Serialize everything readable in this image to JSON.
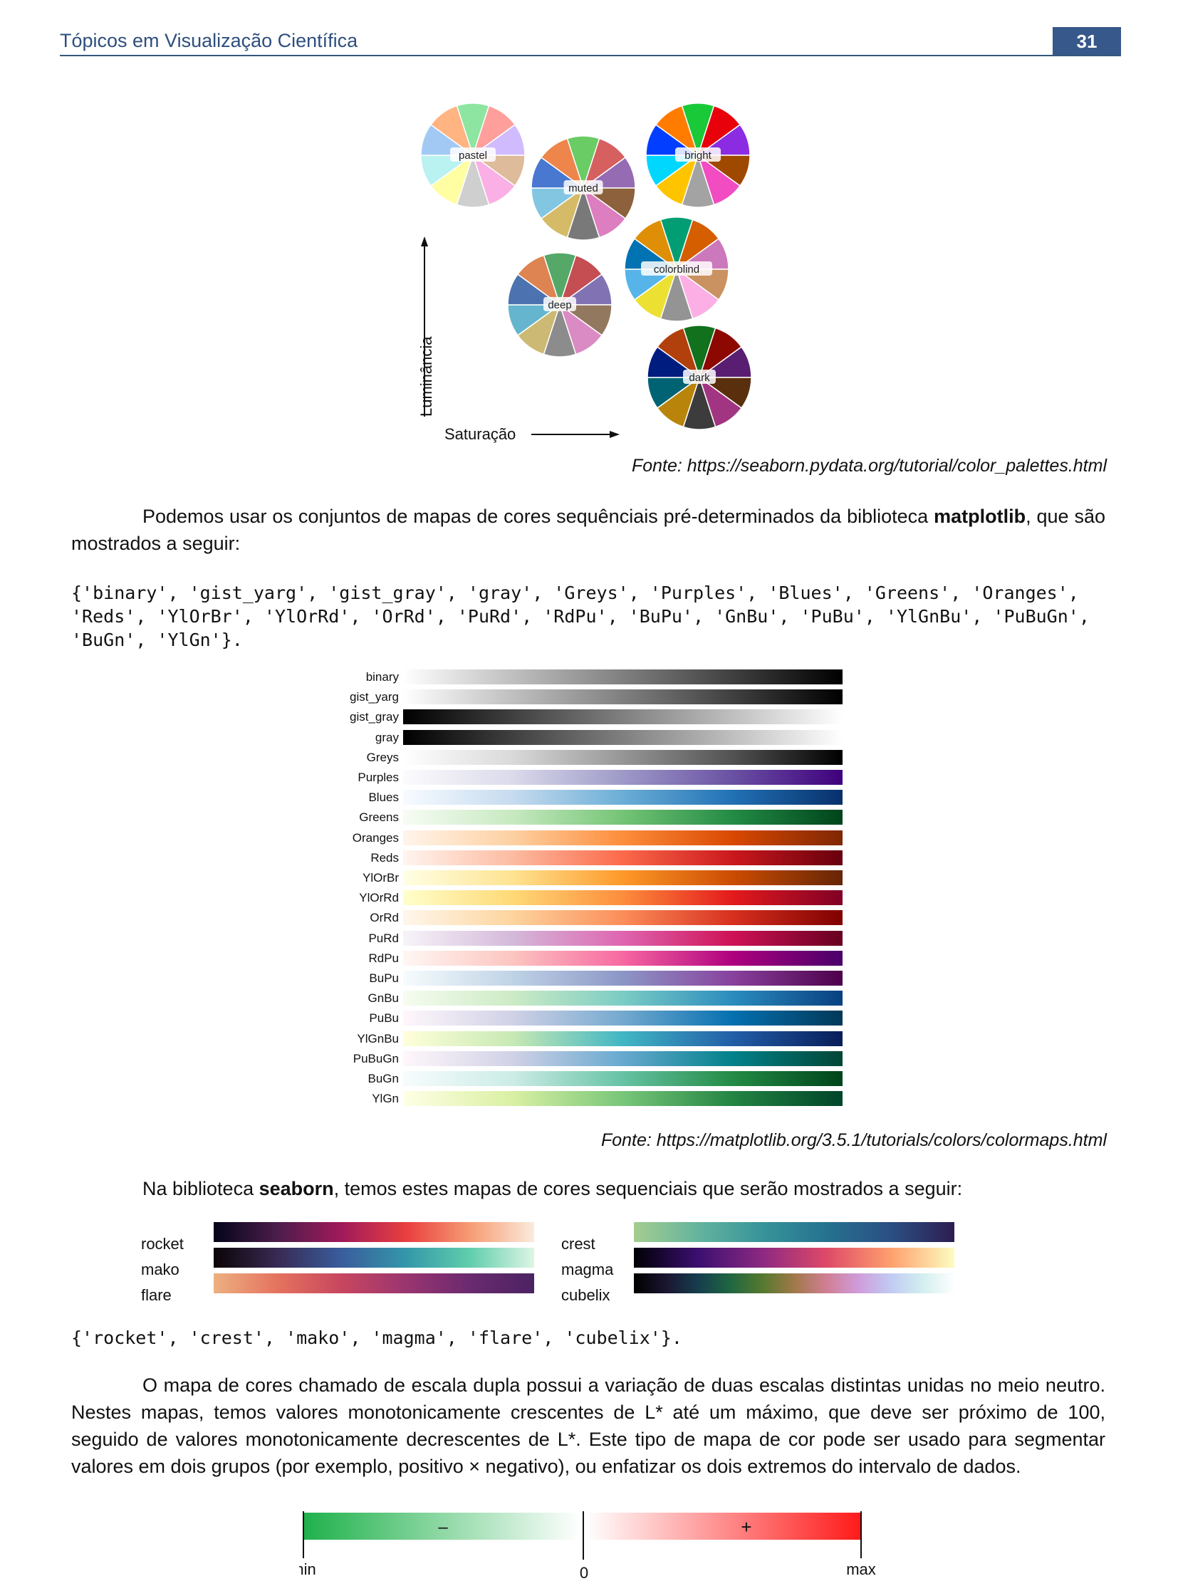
{
  "header": {
    "title": "Tópicos em Visualização Científica",
    "page_number": "31"
  },
  "palettes_figure": {
    "palettes": [
      {
        "name": "pastel",
        "colors": [
          "#8de5a1",
          "#ff9f9b",
          "#d0bbff",
          "#debb9b",
          "#fab0e4",
          "#cfcfcf",
          "#fffea3",
          "#b9f2f0",
          "#a1c9f4",
          "#ffb482"
        ]
      },
      {
        "name": "muted",
        "colors": [
          "#6acc64",
          "#d65f5f",
          "#956cb4",
          "#8c613c",
          "#dc7ec0",
          "#797979",
          "#d5bb67",
          "#82c6e2",
          "#4878d0",
          "#ee854a"
        ]
      },
      {
        "name": "bright",
        "colors": [
          "#1ac938",
          "#e8000b",
          "#8b2be2",
          "#9f4800",
          "#f14cc1",
          "#a3a3a3",
          "#ffc400",
          "#00d7ff",
          "#023eff",
          "#ff7c00"
        ]
      },
      {
        "name": "deep",
        "colors": [
          "#55a868",
          "#c44e52",
          "#8172b3",
          "#937860",
          "#da8bc3",
          "#8c8c8c",
          "#ccb974",
          "#64b5cd",
          "#4c72b0",
          "#dd8452"
        ]
      },
      {
        "name": "colorblind",
        "colors": [
          "#029e73",
          "#d55e00",
          "#cc78bc",
          "#ca9161",
          "#fbafe4",
          "#949494",
          "#ece133",
          "#56b4e9",
          "#0173b2",
          "#de8f05"
        ]
      },
      {
        "name": "dark",
        "colors": [
          "#12711c",
          "#8c0800",
          "#591e71",
          "#592f0d",
          "#a23582",
          "#3c3c3c",
          "#b8850a",
          "#006374",
          "#001c7f",
          "#b1400d"
        ]
      }
    ],
    "y_axis_label": "Luminância",
    "x_axis_label": "Saturação",
    "caption": "Fonte: https://seaborn.pydata.org/tutorial/color_palettes.html"
  },
  "paragraph1": {
    "before_bold": "Podemos usar os conjuntos de mapas de cores sequênciais pré-determinados da biblioteca ",
    "bold": "matplotlib",
    "after_bold": ", que são mostrados a seguir:"
  },
  "code1": "{'binary', 'gist_yarg', 'gist_gray', 'gray', 'Greys', 'Purples', 'Blues', 'Greens', 'Oranges', 'Reds', 'YlOrBr', 'YlOrRd', 'OrRd', 'PuRd', 'RdPu', 'BuPu', 'GnBu', 'PuBu', 'YlGnBu', 'PuBuGn', 'BuGn', 'YlGn'}.",
  "matplotlib_cmaps": [
    {
      "name": "binary",
      "colors": [
        "#ffffff",
        "#000000"
      ]
    },
    {
      "name": "gist_yarg",
      "colors": [
        "#ffffff",
        "#000000"
      ]
    },
    {
      "name": "gist_gray",
      "colors": [
        "#000000",
        "#ffffff"
      ]
    },
    {
      "name": "gray",
      "colors": [
        "#000000",
        "#ffffff"
      ]
    },
    {
      "name": "Greys",
      "colors": [
        "#ffffff",
        "#d9d9d9",
        "#969696",
        "#525252",
        "#000000"
      ]
    },
    {
      "name": "Purples",
      "colors": [
        "#fcfbfd",
        "#dadaeb",
        "#9e9ac8",
        "#6a51a3",
        "#3f007d"
      ]
    },
    {
      "name": "Blues",
      "colors": [
        "#f7fbff",
        "#c6dbef",
        "#6baed6",
        "#2171b5",
        "#08306b"
      ]
    },
    {
      "name": "Greens",
      "colors": [
        "#f7fcf5",
        "#c7e9c0",
        "#74c476",
        "#238b45",
        "#00441b"
      ]
    },
    {
      "name": "Oranges",
      "colors": [
        "#fff5eb",
        "#fdd0a2",
        "#fd8d3c",
        "#d94801",
        "#7f2704"
      ]
    },
    {
      "name": "Reds",
      "colors": [
        "#fff5f0",
        "#fcbba1",
        "#fb6a4a",
        "#cb181d",
        "#67000d"
      ]
    },
    {
      "name": "YlOrBr",
      "colors": [
        "#ffffe5",
        "#fee391",
        "#fe9929",
        "#cc4c02",
        "#662506"
      ]
    },
    {
      "name": "YlOrRd",
      "colors": [
        "#ffffcc",
        "#fed976",
        "#fd8d3c",
        "#e31a1c",
        "#800026"
      ]
    },
    {
      "name": "OrRd",
      "colors": [
        "#fff7ec",
        "#fdd49e",
        "#fc8d59",
        "#d7301f",
        "#7f0000"
      ]
    },
    {
      "name": "PuRd",
      "colors": [
        "#f7f4f9",
        "#d4b9da",
        "#df65b0",
        "#ce1256",
        "#67001f"
      ]
    },
    {
      "name": "RdPu",
      "colors": [
        "#fff7f3",
        "#fcc5c0",
        "#f768a1",
        "#ae017e",
        "#49006a"
      ]
    },
    {
      "name": "BuPu",
      "colors": [
        "#f7fcfd",
        "#bfd3e6",
        "#8c96c6",
        "#88419d",
        "#4d004b"
      ]
    },
    {
      "name": "GnBu",
      "colors": [
        "#f7fcf0",
        "#ccebc5",
        "#7bccc4",
        "#2b8cbe",
        "#084081"
      ]
    },
    {
      "name": "PuBu",
      "colors": [
        "#fff7fb",
        "#d0d1e6",
        "#74a9cf",
        "#0570b0",
        "#023858"
      ]
    },
    {
      "name": "YlGnBu",
      "colors": [
        "#ffffd9",
        "#c7e9b4",
        "#41b6c4",
        "#225ea8",
        "#081d58"
      ]
    },
    {
      "name": "PuBuGn",
      "colors": [
        "#fff7fb",
        "#d0d1e6",
        "#67a9cf",
        "#02818a",
        "#014636"
      ]
    },
    {
      "name": "BuGn",
      "colors": [
        "#f7fcfd",
        "#ccece6",
        "#66c2a4",
        "#238b45",
        "#00441b"
      ]
    },
    {
      "name": "YlGn",
      "colors": [
        "#ffffe5",
        "#d9f0a3",
        "#78c679",
        "#238443",
        "#004529"
      ]
    }
  ],
  "caption2": "Fonte: https://matplotlib.org/3.5.1/tutorials/colors/colormaps.html",
  "paragraph2": {
    "before_bold": "Na biblioteca ",
    "bold": "seaborn",
    "after_bold": ", temos estes mapas de cores sequenciais que serão mostrados a seguir:"
  },
  "seaborn_cmaps": [
    {
      "name": "rocket",
      "colors": [
        "#03051a",
        "#4c1d4b",
        "#a11a5b",
        "#e83f3f",
        "#f69c73",
        "#faebdd"
      ]
    },
    {
      "name": "mako",
      "colors": [
        "#0b0405",
        "#382a54",
        "#395d9c",
        "#3497a9",
        "#60ceac",
        "#def5e5"
      ]
    },
    {
      "name": "flare",
      "colors": [
        "#edb081",
        "#e4725e",
        "#c7465f",
        "#9a3570",
        "#6a2a6f",
        "#4b2362"
      ]
    },
    {
      "name": "crest",
      "colors": [
        "#a5cd90",
        "#64b49e",
        "#37949a",
        "#26728f",
        "#2b4f83",
        "#2c1e50"
      ]
    },
    {
      "name": "magma",
      "colors": [
        "#000004",
        "#3b0f70",
        "#8c2981",
        "#de4968",
        "#fe9f6d",
        "#fcfdbf"
      ]
    },
    {
      "name": "cubelix",
      "colors": [
        "#000000",
        "#1a1530",
        "#163d4e",
        "#1f6642",
        "#54792f",
        "#a07949",
        "#d07e93",
        "#cf9cda",
        "#c1caf3",
        "#d2eeef",
        "#ffffff"
      ]
    }
  ],
  "code2": "{'rocket', 'crest', 'mako', 'magma', 'flare', 'cubelix'}.",
  "paragraph3": "O mapa de cores chamado de escala dupla possui a variação de duas escalas distintas unidas no meio neutro. Nestes mapas, temos valores monotonicamente crescentes de L* até um máximo, que deve ser próximo de 100, seguido de valores monotonicamente decrescentes de L*. Este tipo de mapa de cor pode ser usado para segmentar valores em dois grupos (por exemplo, positivo × negativo), ou  enfatizar os dois extremos do intervalo de dados.",
  "diverging": {
    "left_color": "#1fb14b",
    "right_color": "#ff1b1b",
    "minus": "–",
    "plus": "+",
    "min_label": "min",
    "zero_label": "0",
    "max_label": "max"
  }
}
